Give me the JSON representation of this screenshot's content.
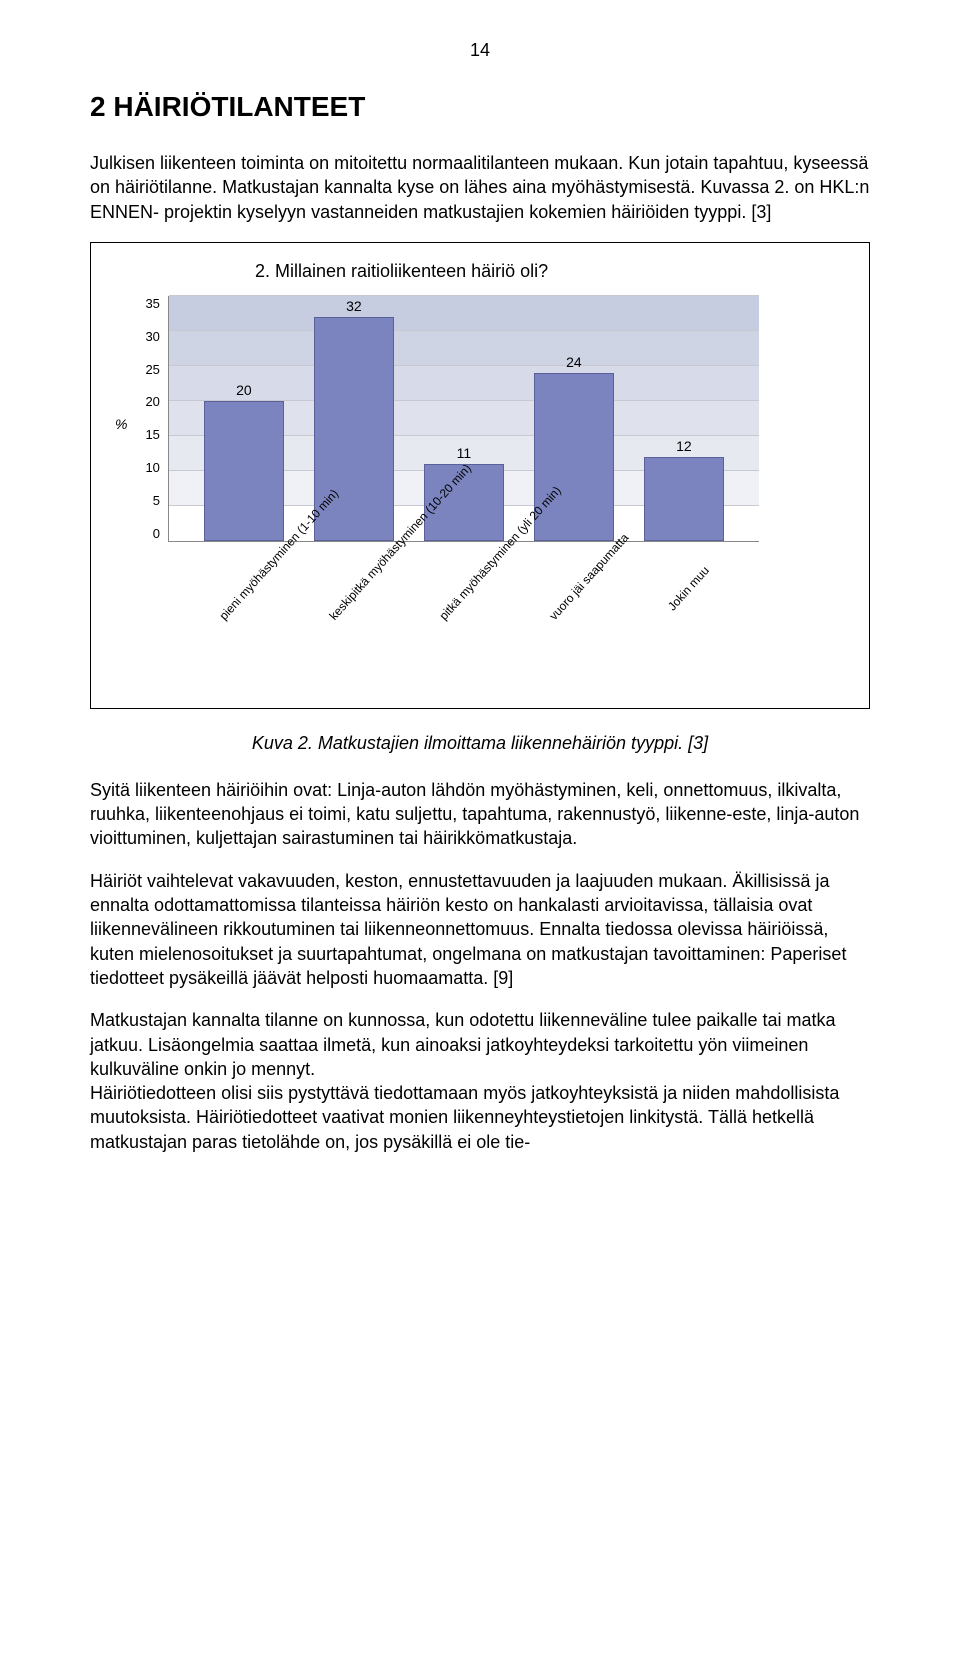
{
  "page_number": "14",
  "heading": "2  HÄIRIÖTILANTEET",
  "para1": "Julkisen liikenteen toiminta on mitoitettu normaalitilanteen mukaan. Kun jotain tapahtuu, kyseessä on häiriötilanne. Matkustajan kannalta kyse on lähes aina myöhästymisestä. Kuvassa 2. on HKL:n ENNEN- projektin kyselyyn vastanneiden matkustajien kokemien häiriöiden tyyppi. [3]",
  "chart": {
    "type": "bar",
    "title": "2. Millainen raitioliikenteen häiriö oli?",
    "y_label": "%",
    "ylim": [
      0,
      35
    ],
    "ytick_step": 5,
    "yticks": [
      "35",
      "30",
      "25",
      "20",
      "15",
      "10",
      "5",
      "0"
    ],
    "categories": [
      "pieni myöhästyminen (1-10 min)",
      "keskipitkä myöhästyminen (10-20 min)",
      "pitkä myöhästyminen (yli 20 min)",
      "vuoro jäi saapumatta",
      "Jokin muu"
    ],
    "values": [
      20,
      32,
      11,
      24,
      12
    ],
    "bar_color": "#7b84be",
    "bar_border_color": "#5a619a",
    "grid_band_colors": [
      "#ffffff",
      "#f0f1f6",
      "#e7e9f1",
      "#dfe2ed",
      "#d7dbe9",
      "#cfd4e5",
      "#c7cde1"
    ],
    "axis_color": "#888888",
    "label_fontsize": 12,
    "title_fontsize": 18
  },
  "caption": "Kuva 2. Matkustajien ilmoittama liikennehäiriön tyyppi. [3]",
  "para2": "Syitä liikenteen häiriöihin ovat: Linja-auton lähdön myöhästyminen, keli, onnettomuus, ilkivalta, ruuhka, liikenteenohjaus ei toimi, katu suljettu, tapahtuma, rakennustyö, liikenne-este, linja-auton vioittuminen, kuljettajan sairastuminen tai häirikkömatkustaja.",
  "para3": "Häiriöt vaihtelevat vakavuuden, keston, ennustettavuuden ja laajuuden mukaan. Äkillisissä ja ennalta odottamattomissa tilanteissa häiriön kesto on hankalasti arvioitavissa, tällaisia ovat liikennevälineen rikkoutuminen tai liikenneonnettomuus. Ennalta tiedossa olevissa häiriöissä, kuten mielenosoitukset ja suurtapahtumat, ongelmana on matkustajan tavoittaminen: Paperiset tiedotteet pysäkeillä jäävät helposti huomaamatta. [9]",
  "para4": "Matkustajan kannalta tilanne on kunnossa, kun odotettu liikenneväline tulee paikalle tai matka jatkuu. Lisäongelmia saattaa ilmetä, kun ainoaksi jatkoyhteydeksi tarkoitettu yön viimeinen kulkuväline onkin jo mennyt.",
  "para5": "Häiriötiedotteen olisi siis pystyttävä tiedottamaan myös jatkoyhteyksistä ja niiden mahdollisista muutoksista. Häiriötiedotteet vaativat monien liikenneyhteystietojen linkitystä. Tällä hetkellä matkustajan paras tietolähde on, jos pysäkillä ei ole tie-"
}
